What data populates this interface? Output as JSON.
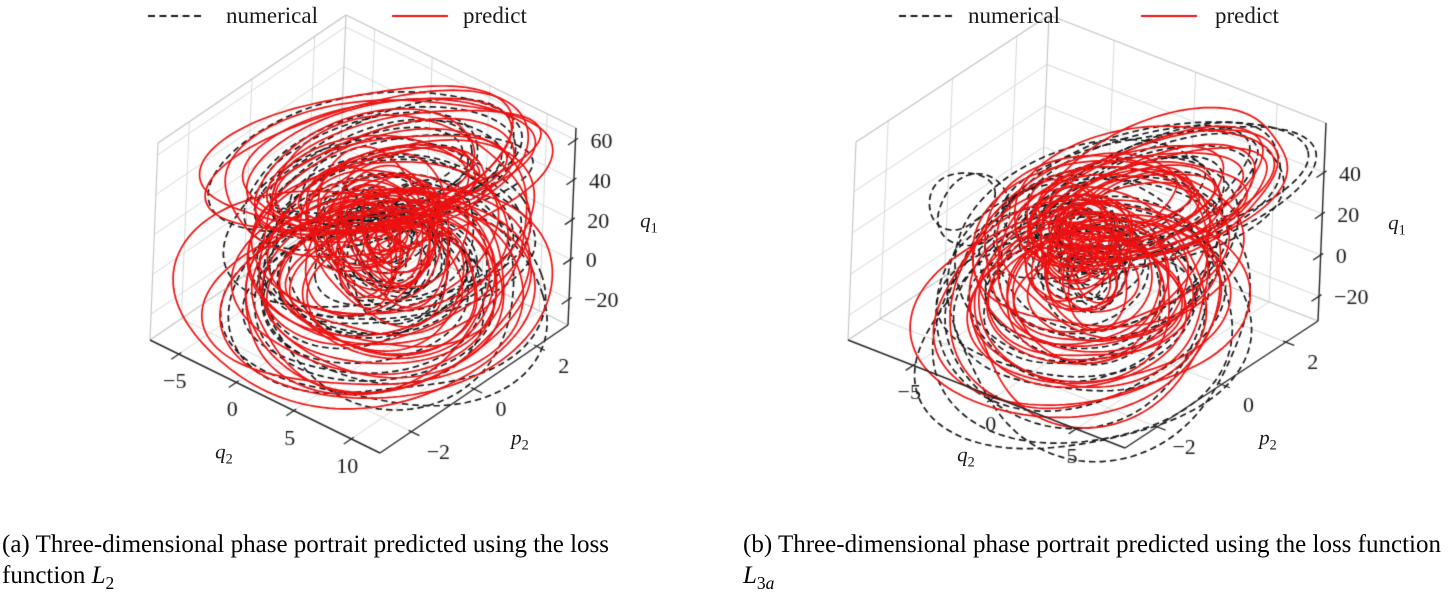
{
  "figure": {
    "legend": {
      "items": [
        {
          "label": "numerical",
          "color": "#1a1a1a",
          "linestyle": "dashed"
        },
        {
          "label": "predict",
          "color": "#ee1111",
          "linestyle": "solid"
        }
      ]
    },
    "panels": [
      {
        "caption_prefix": "(a) ",
        "caption_text": "Three-dimensional phase portrait predicted using the loss function ",
        "loss_symbol": "L",
        "loss_sub_num": "2",
        "loss_sub_alpha": ""
      },
      {
        "caption_prefix": "(b) ",
        "caption_text": "Three-dimensional phase portrait predicted using the loss function ",
        "loss_symbol": "L",
        "loss_sub_num": "3",
        "loss_sub_alpha": "a"
      }
    ]
  },
  "chart_data": [
    {
      "type": "line",
      "projection": "3d",
      "panel": "a",
      "title": "",
      "axes": {
        "x": {
          "label_main": "q",
          "label_sub": "2",
          "ticks": [
            -5,
            0,
            5,
            10
          ],
          "range": [
            -7.5,
            12.5
          ]
        },
        "y": {
          "label_main": "p",
          "label_sub": "2",
          "ticks": [
            -2,
            0,
            2
          ],
          "range": [
            -3,
            3
          ]
        },
        "z": {
          "label_main": "q",
          "label_sub": "1",
          "ticks": [
            -20,
            0,
            20,
            40,
            60
          ],
          "range": [
            -33,
            66
          ]
        }
      },
      "series": [
        {
          "name": "numerical",
          "color": "#1a1a1a",
          "linestyle": "dashed"
        },
        {
          "name": "predict",
          "color": "#ee1111",
          "linestyle": "solid"
        }
      ],
      "legend_position": "top",
      "grid": true,
      "description": "Chaotic two-lobe phase-space trajectory tangle; the predicted orbit (red, solid) loops slightly overshoot the numerical orbit (black, dashed) and form a dense core near the lobe junction."
    },
    {
      "type": "line",
      "projection": "3d",
      "panel": "b",
      "title": "",
      "axes": {
        "x": {
          "label_main": "q",
          "label_sub": "2",
          "ticks": [
            -5,
            0,
            5
          ],
          "range": [
            -9,
            8
          ]
        },
        "y": {
          "label_main": "p",
          "label_sub": "2",
          "ticks": [
            -2,
            0,
            2
          ],
          "range": [
            -3,
            3
          ]
        },
        "z": {
          "label_main": "q",
          "label_sub": "1",
          "ticks": [
            -20,
            0,
            20,
            40
          ],
          "range": [
            -32,
            64
          ]
        }
      },
      "series": [
        {
          "name": "numerical",
          "color": "#1a1a1a",
          "linestyle": "dashed"
        },
        {
          "name": "predict",
          "color": "#ee1111",
          "linestyle": "solid"
        }
      ],
      "legend_position": "top",
      "grid": true,
      "description": "Chaotic two-lobe phase-space trajectory; the numerical orbit envelope (black, dashed) extends beyond the predicted orbit (red, solid), which spirals into a dense core between the upper-right and lower lobes."
    }
  ]
}
